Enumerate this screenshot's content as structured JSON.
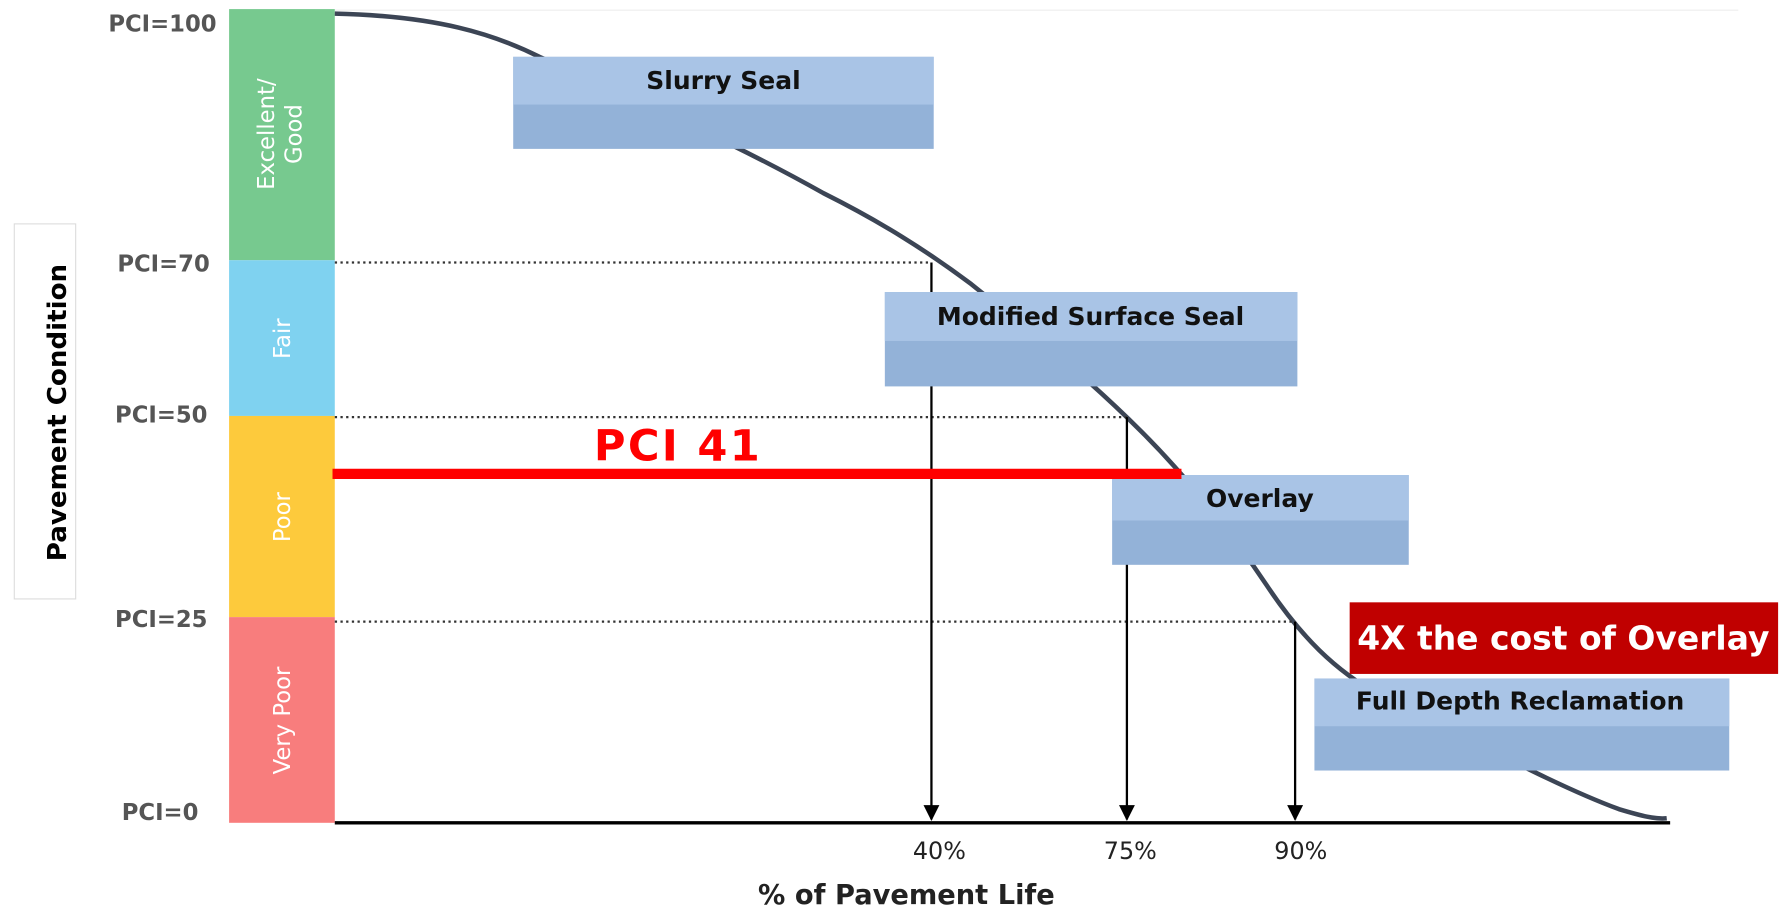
{
  "y_axis": {
    "label": "Pavement Condition",
    "levels": [
      "PCI=100",
      "PCI=70",
      "PCI=50",
      "PCI=25",
      "PCI=0"
    ]
  },
  "bands": [
    [
      "Excellent/",
      "Good"
    ],
    [
      "Fair"
    ],
    [
      "Poor"
    ],
    [
      "Very Poor"
    ]
  ],
  "treatments": [
    "Slurry Seal",
    "Modified Surface Seal",
    "Overlay",
    "Full Depth Reclamation"
  ],
  "x_axis": {
    "label": "% of Pavement Life",
    "marks": [
      "40%",
      "75%",
      "90%"
    ]
  },
  "current": "PCI 41",
  "callout": "4X the cost of Overlay"
}
